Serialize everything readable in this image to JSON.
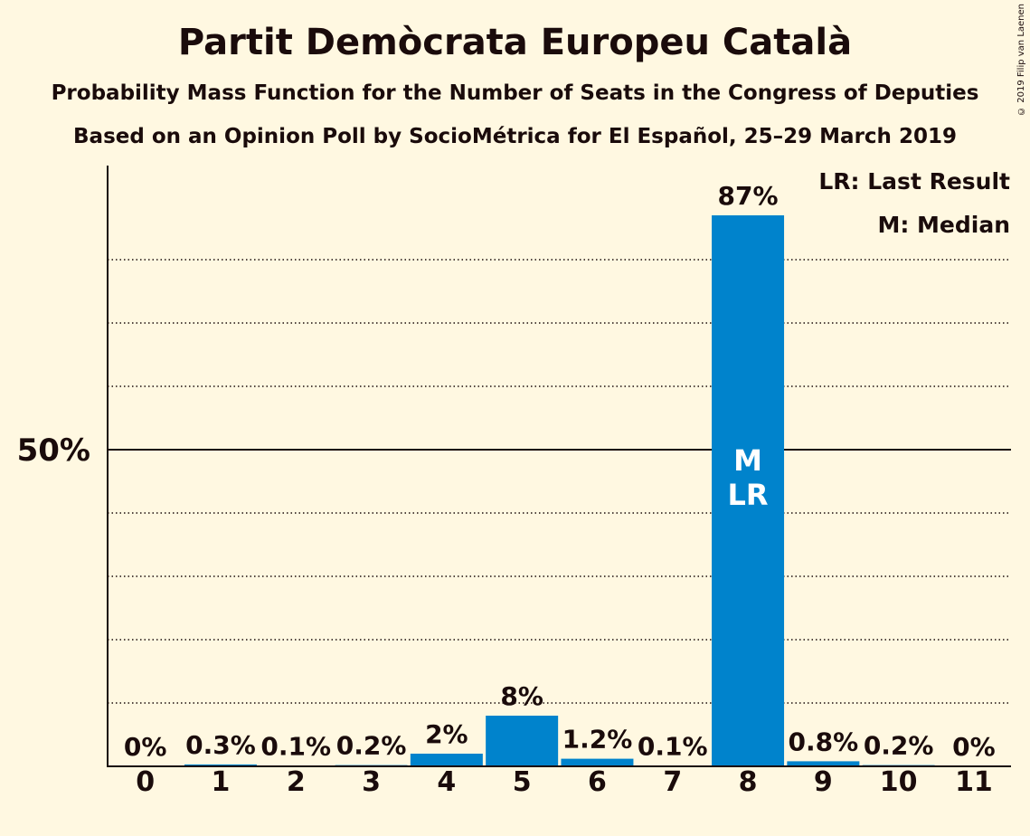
{
  "title": "Partit Demòcrata Europeu Català",
  "subtitle1": "Probability Mass Function for the Number of Seats in the Congress of Deputies",
  "subtitle2": "Based on an Opinion Poll by SocioMétrica for El Español, 25–29 March 2019",
  "copyright": "© 2019 Filip van Laenen",
  "colors": {
    "bar": "#0083cc",
    "background": "#fff8e1",
    "text": "#1a0b0b"
  },
  "chart_data": {
    "type": "bar",
    "categories": [
      "0",
      "1",
      "2",
      "3",
      "4",
      "5",
      "6",
      "7",
      "8",
      "9",
      "10",
      "11"
    ],
    "values": [
      0,
      0.3,
      0.1,
      0.2,
      2,
      8,
      1.2,
      0.1,
      87,
      0.8,
      0.2,
      0
    ],
    "value_labels": [
      "0%",
      "0.3%",
      "0.1%",
      "0.2%",
      "2%",
      "8%",
      "1.2%",
      "0.1%",
      "87%",
      "0.8%",
      "0.2%",
      "0%"
    ],
    "ylim": [
      0,
      95
    ],
    "y_ticks": [
      {
        "value": 50,
        "label": "50%"
      }
    ],
    "gridlines": [
      10,
      20,
      30,
      40,
      60,
      70,
      80
    ],
    "grid": "dotted",
    "bar_annotations": [
      {
        "category": "8",
        "lines": [
          "M",
          "LR"
        ]
      }
    ],
    "legend": [
      "LR: Last Result",
      "M: Median"
    ],
    "legend_position": "top-right"
  }
}
